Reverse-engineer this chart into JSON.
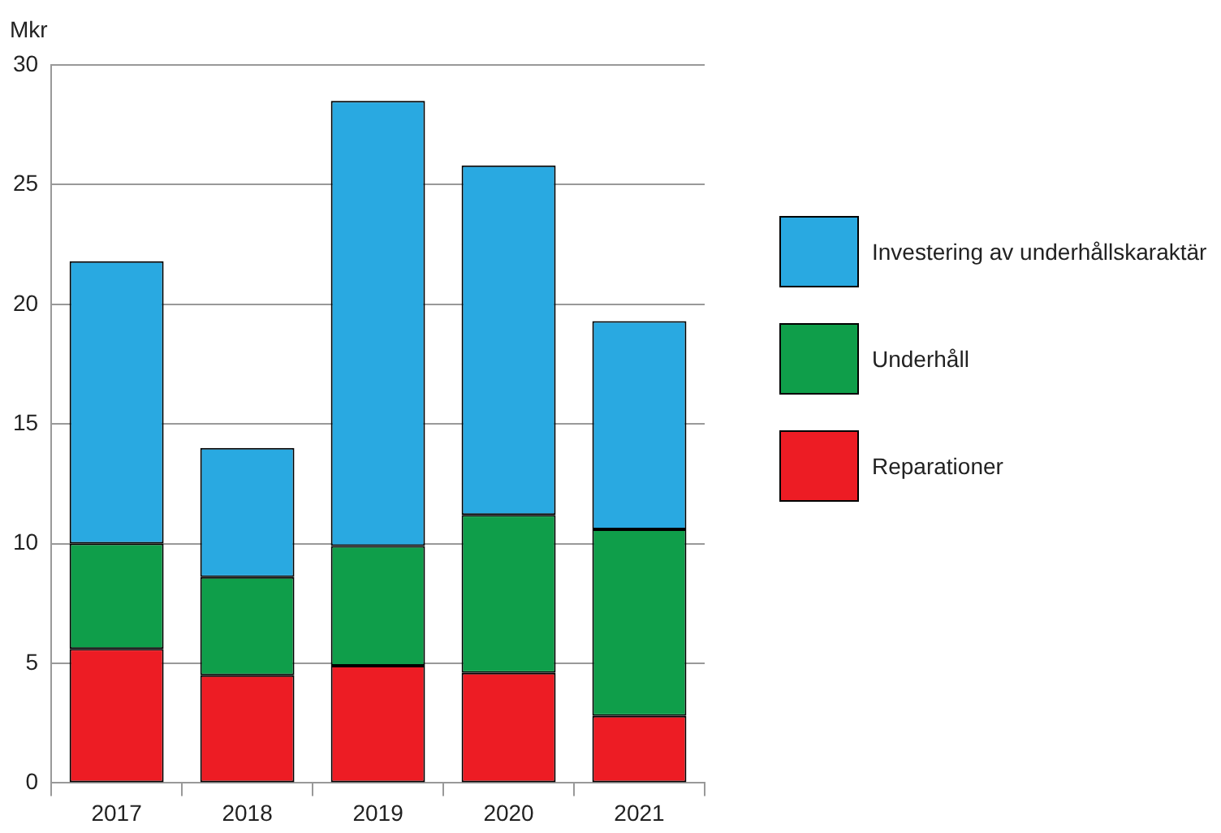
{
  "chart_data": {
    "type": "bar",
    "stacked": true,
    "ylabel": "Mkr",
    "categories": [
      "2017",
      "2018",
      "2019",
      "2020",
      "2021"
    ],
    "series": [
      {
        "name": "Reparationer",
        "color": "#ed1c24",
        "values": [
          5.6,
          4.5,
          4.9,
          4.6,
          2.8
        ]
      },
      {
        "name": "Underhåll",
        "color": "#0f9e4a",
        "values": [
          4.4,
          4.1,
          5.0,
          6.6,
          7.8
        ]
      },
      {
        "name": "Investering av underhållskaraktär",
        "color": "#29a9e1",
        "values": [
          11.8,
          5.4,
          18.6,
          14.6,
          8.7
        ]
      }
    ],
    "ylim": [
      0,
      30
    ],
    "yticks": [
      0,
      5,
      10,
      15,
      20,
      25,
      30
    ],
    "grid": "y",
    "legend": "right"
  }
}
